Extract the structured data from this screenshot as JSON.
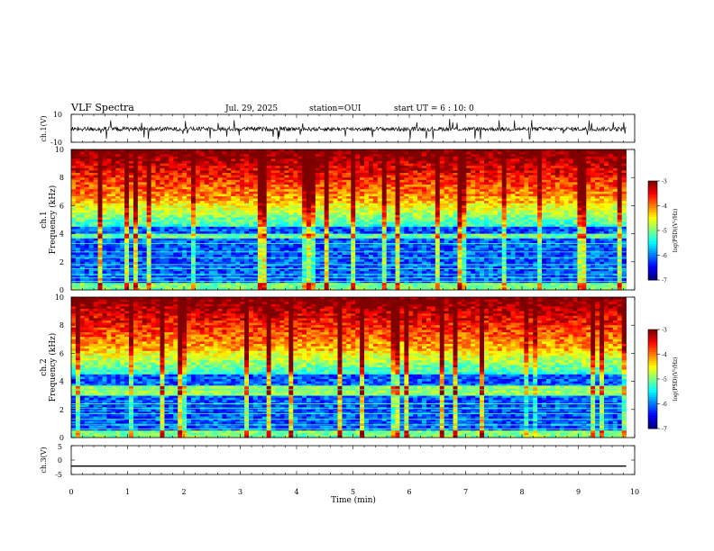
{
  "header": {
    "title": "VLF Spectra",
    "date": "Jul. 29, 2025",
    "station": "station=OUI",
    "start": "start UT =  6 : 10: 0"
  },
  "colors": {
    "background": "#ffffff",
    "axes": "#000000",
    "trace": "#000000"
  },
  "chart_data": [
    {
      "type": "line",
      "name": "ch1-waveform",
      "ylabel": "ch.1(V)",
      "ylim": [
        -10,
        10
      ],
      "yticks": [
        "10",
        "-10"
      ],
      "xlim": [
        0,
        9.85
      ],
      "mean": -0.5,
      "amplitude_typical": 1.5,
      "spike_min": -8,
      "spike_max": 7
    },
    {
      "type": "heatmap",
      "name": "ch1-spectrogram",
      "ylabel": "ch.1\nFrequency (kHz)",
      "ylim": [
        0,
        10
      ],
      "yticks": [
        "0",
        "2",
        "4",
        "6",
        "8",
        "10"
      ],
      "xlim": [
        0,
        9.85
      ],
      "colorbar": {
        "label": "log(PSD)(V²/Hz)",
        "range": [
          -7,
          -3
        ],
        "ticks": [
          "-3",
          "-4",
          "-5",
          "-6",
          "-7"
        ]
      }
    },
    {
      "type": "heatmap",
      "name": "ch2-spectrogram",
      "ylabel": "ch.2\nFrequency (kHz)",
      "ylim": [
        0,
        10
      ],
      "yticks": [
        "0",
        "2",
        "4",
        "6",
        "8",
        "10"
      ],
      "xlim": [
        0,
        9.85
      ],
      "colorbar": {
        "label": "log(PSD)(V²/Hz)",
        "range": [
          -7,
          -3
        ],
        "ticks": [
          "-3",
          "-4",
          "-5",
          "-6",
          "-7"
        ]
      }
    },
    {
      "type": "line",
      "name": "ch3-waveform",
      "ylabel": "ch.3(V)",
      "ylim": [
        -5,
        5
      ],
      "yticks": [
        "5",
        "0",
        "-5"
      ],
      "xlim": [
        0,
        9.85
      ],
      "x": [
        0,
        9.85
      ],
      "y": [
        -2.1,
        -2.1
      ]
    }
  ],
  "xaxis": {
    "label": "Time (min)",
    "range": [
      0,
      10
    ],
    "ticks": [
      "0",
      "1",
      "2",
      "3",
      "4",
      "5",
      "6",
      "7",
      "8",
      "9",
      "10"
    ]
  }
}
